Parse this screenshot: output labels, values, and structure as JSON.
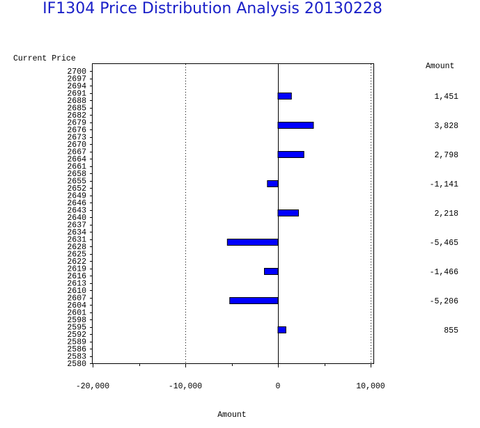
{
  "chart_data": {
    "type": "bar",
    "orientation": "horizontal",
    "title": "IF1304 Price Distribution Analysis  20130228",
    "ylabel": "Current Price",
    "xlabel": "Amount",
    "value_column_label": "Amount",
    "price_ticks": [
      2700,
      2697,
      2694,
      2691,
      2688,
      2685,
      2682,
      2679,
      2676,
      2673,
      2670,
      2667,
      2664,
      2661,
      2658,
      2655,
      2652,
      2649,
      2646,
      2643,
      2640,
      2637,
      2634,
      2631,
      2628,
      2625,
      2622,
      2619,
      2616,
      2613,
      2610,
      2607,
      2604,
      2601,
      2598,
      2595,
      2592,
      2589,
      2586,
      2583,
      2580
    ],
    "categories": [
      2688,
      2676,
      2664,
      2652,
      2640,
      2628,
      2616,
      2604,
      2592
    ],
    "values": [
      1451,
      3828,
      2798,
      -1141,
      2218,
      -5465,
      -1466,
      -5206,
      855
    ],
    "value_labels": [
      "1,451",
      "3,828",
      "2,798",
      "-1,141",
      "2,218",
      "-5,465",
      "-1,466",
      "-5,206",
      "855"
    ],
    "xlim": [
      -20000,
      10000
    ],
    "x_ticks": [
      -20000,
      -10000,
      0,
      10000
    ],
    "x_tick_labels": [
      "-20,000",
      "-10,000",
      "0",
      "10,000"
    ],
    "bar_color": "#0000ff",
    "grid": "vertical dotted at major ticks"
  }
}
